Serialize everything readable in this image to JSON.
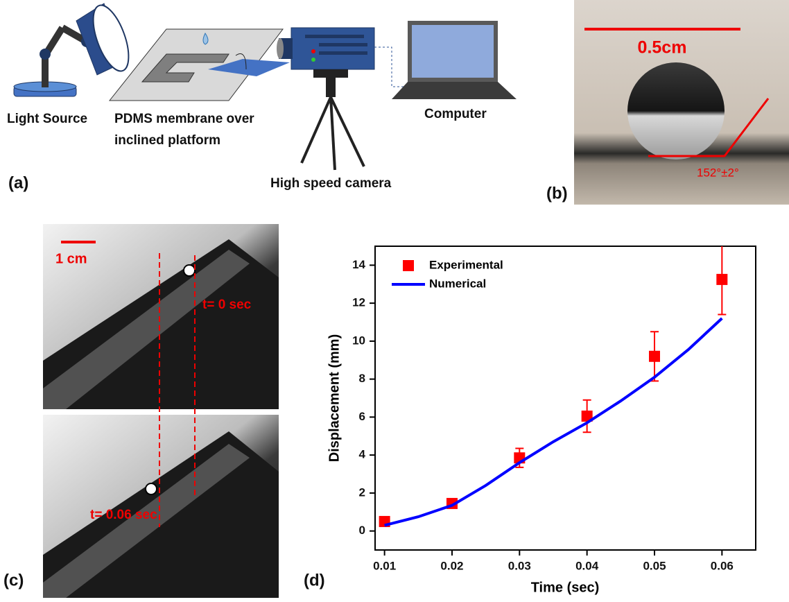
{
  "panels": {
    "a": {
      "label": "(a)",
      "light_source": "Light Source",
      "pdms_line1": "PDMS membrane over",
      "pdms_line2": "inclined platform",
      "camera": "High speed camera",
      "computer": "Computer"
    },
    "b": {
      "label": "(b)",
      "scale": "0.5cm",
      "angle": "152°±2°"
    },
    "c": {
      "label": "(c)",
      "scale": "1 cm",
      "t0": "t= 0 sec",
      "t1": "t= 0.06 sec"
    },
    "d": {
      "label": "(d)"
    }
  },
  "chart_data": {
    "type": "scatter",
    "xlabel": "Time (sec)",
    "ylabel": "Displacement (mm)",
    "xlim": [
      0.0086,
      0.065
    ],
    "ylim": [
      -1,
      15
    ],
    "xticks": [
      0.01,
      0.02,
      0.03,
      0.04,
      0.05,
      0.06
    ],
    "yticks": [
      0,
      2,
      4,
      6,
      8,
      10,
      12,
      14
    ],
    "legend": "upper-left",
    "series": [
      {
        "name": "Experimental",
        "color": "#ff0000",
        "marker": "square",
        "x": [
          0.01,
          0.02,
          0.03,
          0.04,
          0.05,
          0.06
        ],
        "values": [
          0.5,
          1.45,
          3.85,
          6.05,
          9.2,
          13.25
        ],
        "errors": [
          0.1,
          0.15,
          0.5,
          0.85,
          1.3,
          1.85
        ]
      },
      {
        "name": "Numerical",
        "color": "#0000ff",
        "marker": "line",
        "x": [
          0.01,
          0.015,
          0.02,
          0.025,
          0.03,
          0.035,
          0.04,
          0.045,
          0.05,
          0.055,
          0.06
        ],
        "values": [
          0.3,
          0.75,
          1.35,
          2.4,
          3.6,
          4.7,
          5.7,
          6.85,
          8.1,
          9.55,
          11.2
        ]
      }
    ]
  }
}
